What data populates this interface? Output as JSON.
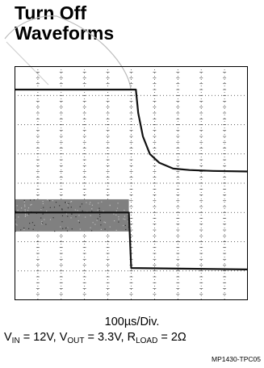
{
  "title": {
    "line1": "Turn Off",
    "line2": "Waveforms"
  },
  "time_per_div": "100µs/Div.",
  "conditions": {
    "vin_label": "V",
    "vin_sub": "IN",
    "vin_val": " = 12V, ",
    "vout_label": "V",
    "vout_sub": "OUT",
    "vout_val": " = 3.3V, ",
    "rload_label": "R",
    "rload_sub": "LOAD",
    "rload_val": " = 2Ω"
  },
  "part_number": "MP1430-TPC05",
  "colors": {
    "trace": "#111111",
    "switching_band": "#808080",
    "grid": "#333333",
    "frame": "#000000"
  },
  "chart_data": {
    "type": "line",
    "title": "Turn Off Waveforms",
    "xlabel": "100µs/Div.",
    "grid": true,
    "x_divisions": 10,
    "y_divisions": 8,
    "xlim": [
      0,
      10
    ],
    "ylim": [
      0,
      8
    ],
    "series": [
      {
        "x": [
          0,
          5.2,
          5.3,
          5.5,
          5.8,
          6.2,
          6.8,
          7.5,
          8.5,
          10
        ],
        "y": [
          7.2,
          7.2,
          6.4,
          5.6,
          5.0,
          4.7,
          4.5,
          4.45,
          4.42,
          4.4
        ]
      },
      {
        "x": [
          0,
          4.9,
          5.0,
          10
        ],
        "y": [
          3.0,
          3.0,
          1.1,
          1.05
        ],
        "band": {
          "x_end": 4.9,
          "y_low": 2.35,
          "y_high": 3.45
        }
      }
    ]
  }
}
